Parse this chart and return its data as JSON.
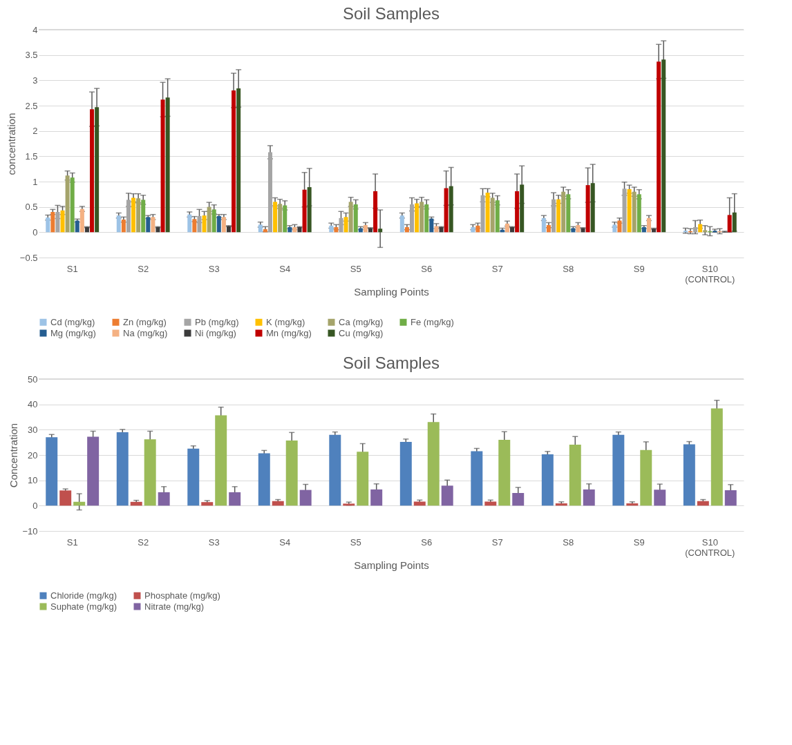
{
  "chart_data": [
    {
      "type": "bar",
      "title": "Soil Samples",
      "xlabel": "Sampling Points",
      "ylabel": "concentration",
      "categories": [
        "S1",
        "S2",
        "S3",
        "S4",
        "S5",
        "S6",
        "S7",
        "S8",
        "S9",
        "S10 (CONTROL)"
      ],
      "ylim": [
        -0.5,
        4
      ],
      "yticks": [
        -0.5,
        0,
        0.5,
        1,
        1.5,
        2,
        2.5,
        3,
        3.5,
        4
      ],
      "grid": "y",
      "legend": "bottom",
      "series": [
        {
          "name": "Cd (mg/kg)",
          "color": "#9dc3e6",
          "values": [
            0.29,
            0.33,
            0.35,
            0.15,
            0.13,
            0.33,
            0.1,
            0.28,
            0.15,
            0.03
          ],
          "errors": [
            0.05,
            0.05,
            0.05,
            0.05,
            0.05,
            0.05,
            0.05,
            0.05,
            0.05,
            0.05
          ]
        },
        {
          "name": "Zn (mg/kg)",
          "color": "#ed7d31",
          "values": [
            0.4,
            0.25,
            0.26,
            0.06,
            0.1,
            0.1,
            0.13,
            0.14,
            0.23,
            0.02
          ],
          "errors": [
            0.05,
            0.05,
            0.05,
            0.05,
            0.05,
            0.05,
            0.05,
            0.05,
            0.05,
            0.05
          ]
        },
        {
          "name": "Pb (mg/kg)",
          "color": "#a5a5a5",
          "values": [
            0.4,
            0.64,
            0.32,
            1.58,
            0.28,
            0.55,
            0.73,
            0.65,
            0.86,
            0.1
          ],
          "errors": [
            0.13,
            0.13,
            0.13,
            0.13,
            0.13,
            0.13,
            0.13,
            0.13,
            0.13,
            0.13
          ]
        },
        {
          "name": "K (mg/kg)",
          "color": "#ffc000",
          "values": [
            0.43,
            0.68,
            0.33,
            0.6,
            0.3,
            0.57,
            0.78,
            0.65,
            0.85,
            0.16
          ],
          "errors": [
            0.08,
            0.08,
            0.08,
            0.08,
            0.08,
            0.08,
            0.08,
            0.08,
            0.08,
            0.08
          ]
        },
        {
          "name": "Ca (mg/kg)",
          "color": "#a5a46b",
          "values": [
            1.12,
            0.67,
            0.5,
            0.56,
            0.6,
            0.6,
            0.68,
            0.8,
            0.8,
            0.04
          ],
          "errors": [
            0.09,
            0.09,
            0.09,
            0.09,
            0.09,
            0.09,
            0.09,
            0.09,
            0.09,
            0.09
          ]
        },
        {
          "name": "Fe (mg/kg)",
          "color": "#70ad47",
          "values": [
            1.08,
            0.64,
            0.45,
            0.53,
            0.55,
            0.55,
            0.63,
            0.75,
            0.75,
            0.02
          ],
          "errors": [
            0.09,
            0.09,
            0.09,
            0.09,
            0.09,
            0.09,
            0.09,
            0.09,
            0.09,
            0.09
          ]
        },
        {
          "name": "Mg (mg/kg)",
          "color": "#255e91",
          "values": [
            0.23,
            0.3,
            0.32,
            0.1,
            0.08,
            0.27,
            0.05,
            0.08,
            0.1,
            0.03
          ],
          "errors": [
            0.03,
            0.03,
            0.03,
            0.03,
            0.03,
            0.03,
            0.03,
            0.03,
            0.03,
            0.03
          ]
        },
        {
          "name": "Na (mg/kg)",
          "color": "#f4b183",
          "values": [
            0.46,
            0.3,
            0.3,
            0.1,
            0.14,
            0.12,
            0.17,
            0.14,
            0.28,
            0.02
          ],
          "errors": [
            0.05,
            0.05,
            0.05,
            0.05,
            0.05,
            0.05,
            0.05,
            0.05,
            0.05,
            0.05
          ]
        },
        {
          "name": "Ni (mg/kg)",
          "color": "#3b3b3b",
          "values": [
            0.1,
            0.1,
            0.12,
            0.1,
            0.08,
            0.1,
            0.1,
            0.08,
            0.07,
            0.01
          ],
          "errors": [
            0.01,
            0.01,
            0.01,
            0.01,
            0.01,
            0.01,
            0.01,
            0.01,
            0.01,
            0.01
          ]
        },
        {
          "name": "Mn (mg/kg)",
          "color": "#c00000",
          "values": [
            2.43,
            2.62,
            2.8,
            0.84,
            0.81,
            0.87,
            0.81,
            0.93,
            3.37,
            0.34
          ],
          "errors": [
            0.34,
            0.34,
            0.34,
            0.34,
            0.34,
            0.34,
            0.34,
            0.34,
            0.34,
            0.34
          ]
        },
        {
          "name": "Cu (mg/kg)",
          "color": "#375623",
          "values": [
            2.47,
            2.66,
            2.84,
            0.89,
            0.07,
            0.91,
            0.94,
            0.97,
            3.41,
            0.39
          ],
          "errors": [
            0.37,
            0.37,
            0.37,
            0.37,
            0.37,
            0.37,
            0.37,
            0.37,
            0.37,
            0.37
          ]
        }
      ]
    },
    {
      "type": "bar",
      "title": "Soil Samples",
      "xlabel": "Sampling Points",
      "ylabel": "Concentration",
      "categories": [
        "S1",
        "S2",
        "S3",
        "S4",
        "S5",
        "S6",
        "S7",
        "S8",
        "S9",
        "S10 (CONTROL)"
      ],
      "ylim": [
        -10,
        50
      ],
      "yticks": [
        -10,
        0,
        10,
        20,
        30,
        40,
        50
      ],
      "grid": "y",
      "legend": "bottom",
      "series": [
        {
          "name": "Chloride (mg/kg)",
          "color": "#4f81bd",
          "values": [
            27,
            29,
            22.5,
            20.7,
            28,
            25.2,
            21.5,
            20.3,
            28,
            24.2
          ],
          "errors": [
            1.1,
            1.1,
            1.1,
            1.1,
            1.1,
            1.1,
            1.1,
            1.1,
            1.1,
            1.1
          ]
        },
        {
          "name": "Phosphate (mg/kg)",
          "color": "#c0504d",
          "values": [
            6,
            1.5,
            1.4,
            1.8,
            0.8,
            1.6,
            1.6,
            0.9,
            0.9,
            1.8
          ],
          "errors": [
            0.6,
            0.6,
            0.6,
            0.6,
            0.6,
            0.6,
            0.6,
            0.6,
            0.6,
            0.6
          ]
        },
        {
          "name": "Suphate (mg/kg)",
          "color": "#9bbb59",
          "values": [
            1.5,
            26.2,
            35.7,
            25.7,
            21.3,
            33,
            26,
            24.1,
            22,
            38.4
          ],
          "errors": [
            3.2,
            3.2,
            3.2,
            3.2,
            3.2,
            3.2,
            3.2,
            3.2,
            3.2,
            3.2
          ]
        },
        {
          "name": "Nitrate (mg/kg)",
          "color": "#8064a2",
          "values": [
            27.2,
            5.3,
            5.3,
            6.2,
            6.4,
            7.9,
            5,
            6.4,
            6.3,
            6.1
          ],
          "errors": [
            2.2,
            2.2,
            2.2,
            2.2,
            2.2,
            2.2,
            2.2,
            2.2,
            2.2,
            2.2
          ]
        }
      ]
    }
  ]
}
